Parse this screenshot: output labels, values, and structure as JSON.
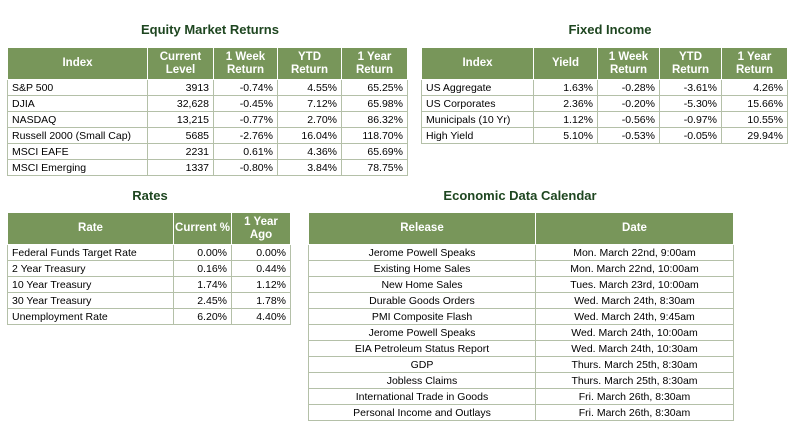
{
  "equity": {
    "title": "Equity Market Returns",
    "headers": [
      "Index",
      "Current Level",
      "1 Week Return",
      "YTD Return",
      "1 Year Return"
    ],
    "rows": [
      [
        "S&P 500",
        "3913",
        "-0.74%",
        "4.55%",
        "65.25%"
      ],
      [
        "DJIA",
        "32,628",
        "-0.45%",
        "7.12%",
        "65.98%"
      ],
      [
        "NASDAQ",
        "13,215",
        "-0.77%",
        "2.70%",
        "86.32%"
      ],
      [
        "Russell 2000 (Small Cap)",
        "5685",
        "-2.76%",
        "16.04%",
        "118.70%"
      ],
      [
        "MSCI EAFE",
        "2231",
        "0.61%",
        "4.36%",
        "65.69%"
      ],
      [
        "MSCI Emerging",
        "1337",
        "-0.80%",
        "3.84%",
        "78.75%"
      ]
    ]
  },
  "fixed_income": {
    "title": "Fixed Income",
    "headers": [
      "Index",
      "Yield",
      "1 Week Return",
      "YTD Return",
      "1 Year Return"
    ],
    "rows": [
      [
        "US Aggregate",
        "1.63%",
        "-0.28%",
        "-3.61%",
        "4.26%"
      ],
      [
        "US Corporates",
        "2.36%",
        "-0.20%",
        "-5.30%",
        "15.66%"
      ],
      [
        "Municipals (10 Yr)",
        "1.12%",
        "-0.56%",
        "-0.97%",
        "10.55%"
      ],
      [
        "High Yield",
        "5.10%",
        "-0.53%",
        "-0.05%",
        "29.94%"
      ]
    ]
  },
  "rates": {
    "title": "Rates",
    "headers": [
      "Rate",
      "Current %",
      "1 Year Ago"
    ],
    "rows": [
      [
        "Federal Funds Target Rate",
        "0.00%",
        "0.00%"
      ],
      [
        "2 Year Treasury",
        "0.16%",
        "0.44%"
      ],
      [
        "10 Year Treasury",
        "1.74%",
        "1.12%"
      ],
      [
        "30 Year Treasury",
        "2.45%",
        "1.78%"
      ],
      [
        "Unemployment Rate",
        "6.20%",
        "4.40%"
      ]
    ]
  },
  "calendar": {
    "title": "Economic Data Calendar",
    "headers": [
      "Release",
      "Date"
    ],
    "rows": [
      [
        "Jerome Powell Speaks",
        "Mon. March 22nd, 9:00am"
      ],
      [
        "Existing Home Sales",
        "Mon. March 22nd, 10:00am"
      ],
      [
        "New Home Sales",
        "Tues. March 23rd, 10:00am"
      ],
      [
        "Durable Goods Orders",
        "Wed. March 24th, 8:30am"
      ],
      [
        "PMI Composite Flash",
        "Wed. March 24th, 9:45am"
      ],
      [
        "Jerome Powell Speaks",
        "Wed. March 24th, 10:00am"
      ],
      [
        "EIA Petroleum Status Report",
        "Wed. March 24th, 10:30am"
      ],
      [
        "GDP",
        "Thurs. March 25th, 8:30am"
      ],
      [
        "Jobless Claims",
        "Thurs. March 25th, 8:30am"
      ],
      [
        "International Trade in Goods",
        "Fri. March 26th, 8:30am"
      ],
      [
        "Personal Income and Outlays",
        "Fri. March 26th, 8:30am"
      ]
    ]
  },
  "colors": {
    "header_bg": "#78965a",
    "title_text": "#1e4620",
    "grid": "#b4c0a8"
  }
}
